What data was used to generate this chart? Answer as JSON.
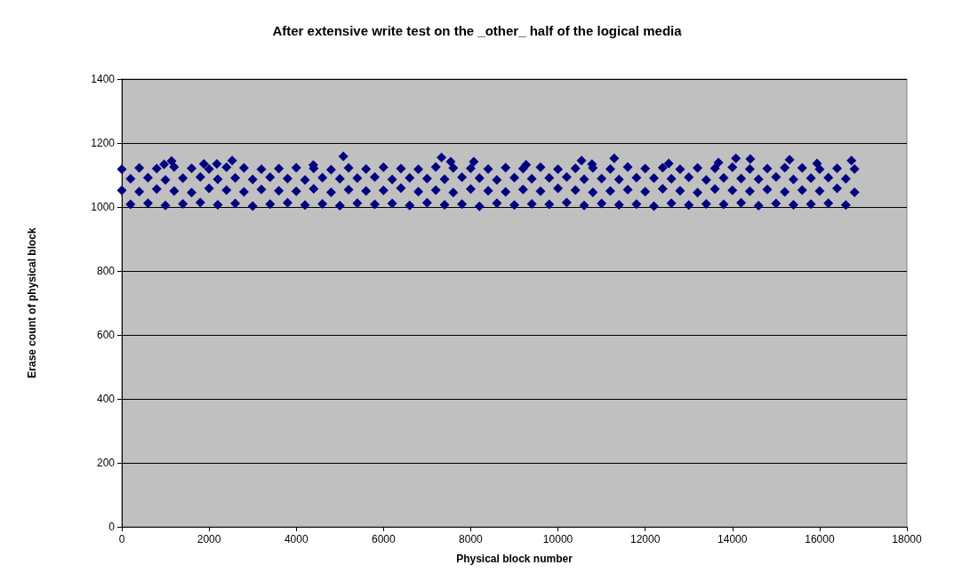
{
  "chart_data": {
    "type": "scatter",
    "title": "After extensive write test on the _other_ half of the logical media",
    "xlabel": "Physical block number",
    "ylabel": "Erase count of physical block",
    "series": [
      {
        "color": "#000080",
        "x": [
          0,
          400,
          800,
          1200,
          1600,
          2000,
          2400,
          2800,
          3200,
          3600,
          4000,
          4400,
          4800,
          5200,
          5600,
          6000,
          6400,
          6800,
          7200,
          7600,
          8000,
          8400,
          8800,
          9200,
          9600,
          10000,
          10400,
          10800,
          11200,
          11600,
          12000,
          12400,
          12800,
          13200,
          13600,
          14000,
          14400,
          14800,
          15200,
          15600,
          16000,
          16400,
          16800,
          200,
          600,
          1000,
          1400,
          1800,
          2200,
          2600,
          3000,
          3400,
          3800,
          4200,
          4600,
          5000,
          5400,
          5800,
          6200,
          6600,
          7000,
          7400,
          7800,
          8200,
          8600,
          9000,
          9400,
          9800,
          10200,
          10600,
          11000,
          11400,
          11800,
          12200,
          12600,
          13000,
          13400,
          13800,
          14200,
          14600,
          15000,
          15400,
          15800,
          16200,
          16600,
          0,
          400,
          800,
          1200,
          1600,
          2000,
          2400,
          2800,
          3200,
          3600,
          4000,
          4400,
          4800,
          5200,
          5600,
          6000,
          6400,
          6800,
          7200,
          7600,
          8000,
          8400,
          8800,
          9200,
          9600,
          10000,
          10400,
          10800,
          11200,
          11600,
          12000,
          12400,
          12800,
          13200,
          13600,
          14000,
          14400,
          14800,
          15200,
          15600,
          16000,
          16400,
          16800,
          200,
          600,
          1000,
          1400,
          1800,
          2200,
          2600,
          3000,
          3400,
          3800,
          4200,
          4600,
          5000,
          5400,
          5800,
          6200,
          6600,
          7000,
          7400,
          7800,
          8200,
          8600,
          9000,
          9400,
          9800,
          10200,
          10600,
          11000,
          11400,
          11800,
          12200,
          12600,
          13000,
          13400,
          13800,
          14200,
          14600,
          15000,
          15400,
          15800,
          16200,
          16600,
          1140,
          970,
          1880,
          2180,
          2530,
          4390,
          5080,
          7330,
          7540,
          8070,
          9270,
          10540,
          10780,
          11290,
          12540,
          13680,
          14080,
          14410,
          15310,
          15940,
          16730
        ],
        "values": [
          1118,
          1122,
          1120,
          1125,
          1121,
          1119,
          1124,
          1122,
          1118,
          1120,
          1123,
          1121,
          1117,
          1122,
          1119,
          1124,
          1120,
          1118,
          1125,
          1122,
          1121,
          1119,
          1123,
          1120,
          1124,
          1118,
          1121,
          1122,
          1119,
          1125,
          1120,
          1123,
          1118,
          1122,
          1121,
          1124,
          1119,
          1120,
          1123,
          1122,
          1118,
          1121,
          1119,
          1088,
          1092,
          1085,
          1090,
          1094,
          1087,
          1091,
          1086,
          1093,
          1089,
          1085,
          1092,
          1088,
          1090,
          1094,
          1086,
          1091,
          1089,
          1087,
          1093,
          1090,
          1085,
          1092,
          1088,
          1091,
          1094,
          1087,
          1089,
          1086,
          1092,
          1090,
          1088,
          1093,
          1085,
          1091,
          1089,
          1087,
          1094,
          1086,
          1090,
          1092,
          1088,
          1052,
          1048,
          1056,
          1050,
          1045,
          1058,
          1053,
          1047,
          1055,
          1051,
          1049,
          1057,
          1046,
          1054,
          1050,
          1052,
          1059,
          1048,
          1053,
          1045,
          1056,
          1051,
          1047,
          1055,
          1049,
          1058,
          1053,
          1046,
          1050,
          1054,
          1048,
          1057,
          1051,
          1045,
          1056,
          1052,
          1049,
          1055,
          1047,
          1053,
          1050,
          1058,
          1046,
          1008,
          1012,
          1005,
          1010,
          1014,
          1007,
          1011,
          1003,
          1009,
          1013,
          1006,
          1010,
          1004,
          1012,
          1008,
          1011,
          1005,
          1013,
          1007,
          1009,
          1002,
          1012,
          1006,
          1010,
          1008,
          1014,
          1005,
          1011,
          1007,
          1009,
          1003,
          1012,
          1006,
          1010,
          1008,
          1013,
          1004,
          1011,
          1007,
          1009,
          1012,
          1006,
          1144,
          1133,
          1135,
          1135,
          1145,
          1131,
          1158,
          1155,
          1142,
          1142,
          1132,
          1145,
          1134,
          1152,
          1136,
          1139,
          1152,
          1150,
          1148,
          1136,
          1145
        ]
      }
    ],
    "xlim": [
      0,
      18000
    ],
    "xticks": [
      0,
      2000,
      4000,
      6000,
      8000,
      10000,
      12000,
      14000,
      16000,
      18000
    ],
    "ylim": [
      0,
      1400
    ],
    "yticks": [
      0,
      200,
      400,
      600,
      800,
      1000,
      1200,
      1400
    ],
    "grid": "y",
    "marker": "diamond"
  }
}
